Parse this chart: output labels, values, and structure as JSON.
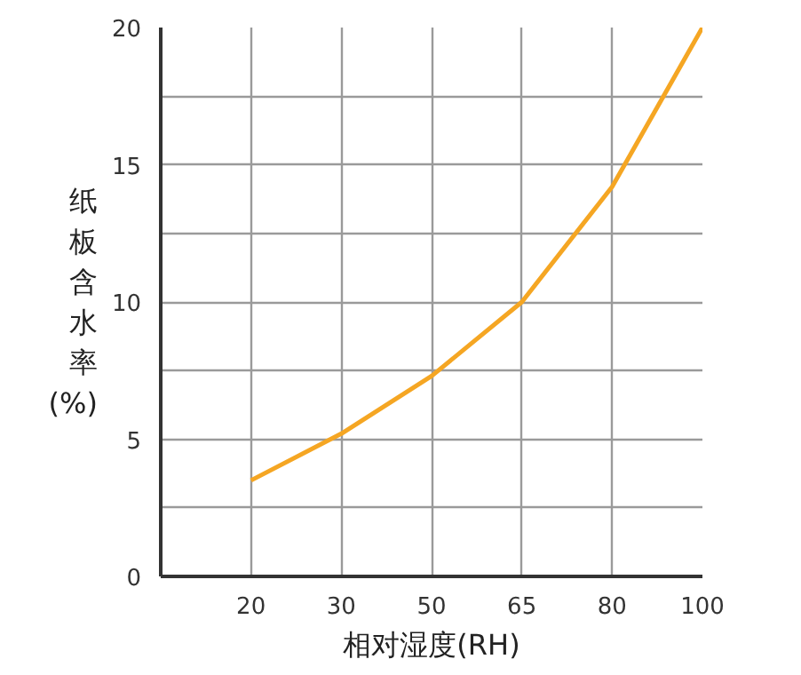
{
  "chart_data": {
    "type": "line",
    "xlabel": "相对湿度(RH)",
    "ylabel": "纸板含水率(%)",
    "categories": [
      "20",
      "30",
      "50",
      "65",
      "80",
      "100"
    ],
    "series": [
      {
        "color": "#f5a623",
        "values": [
          3.5,
          5.2,
          7.3,
          10.0,
          14.2,
          20.0
        ]
      }
    ],
    "ylim": [
      0,
      20
    ],
    "yticks": [
      0,
      {
        "value": 2.5,
        "label": null
      },
      5,
      {
        "value": 7.5,
        "label": null
      },
      10,
      {
        "value": 12.5,
        "label": null
      },
      15,
      {
        "value": 17.5,
        "label": null
      },
      20
    ],
    "grid": true,
    "marker": "none",
    "line_style": "solid"
  }
}
